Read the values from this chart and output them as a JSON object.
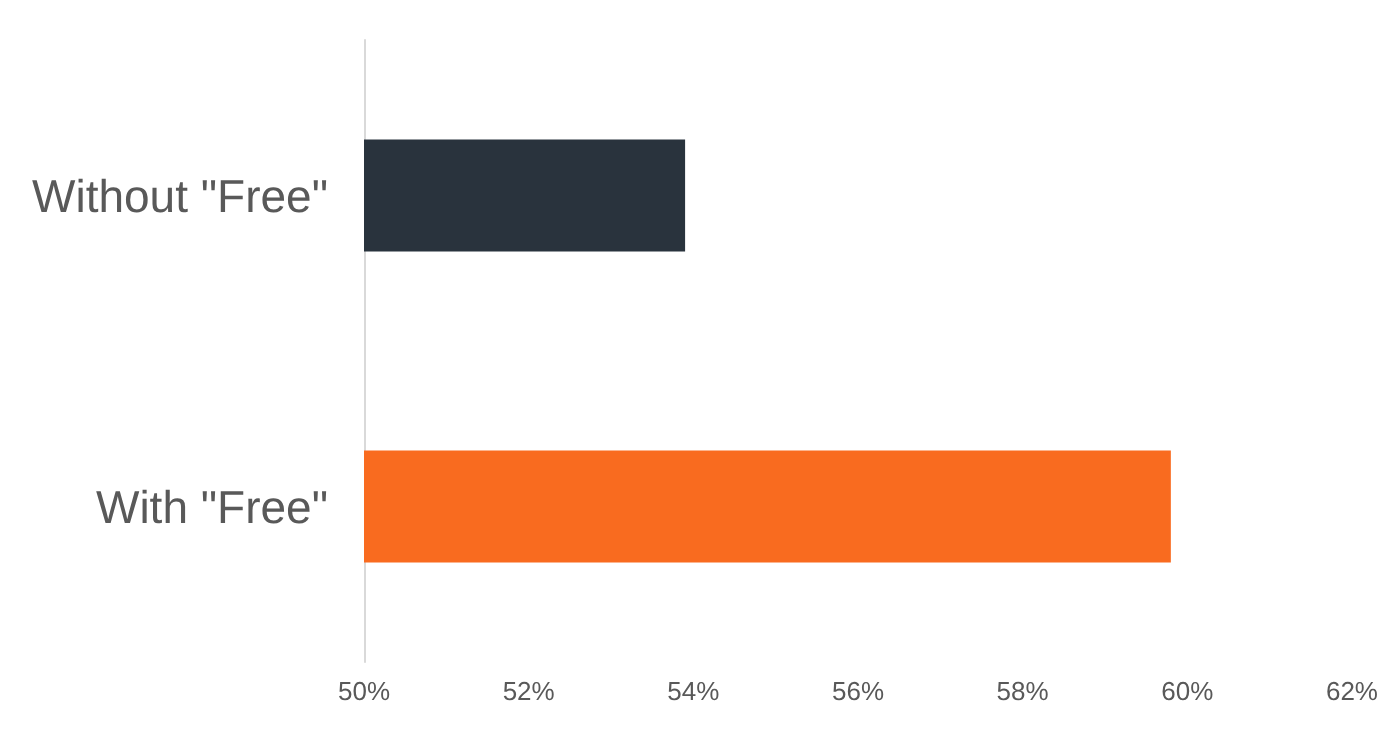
{
  "chart_data": {
    "type": "bar",
    "orientation": "horizontal",
    "categories": [
      "Without \"Free\"",
      "With \"Free\""
    ],
    "values": [
      53.9,
      59.8
    ],
    "colors": [
      "#29333d",
      "#f96b1f"
    ],
    "xlim": [
      50,
      62
    ],
    "xticks": [
      {
        "value": 50,
        "label": "50%"
      },
      {
        "value": 52,
        "label": "52%"
      },
      {
        "value": 54,
        "label": "54%"
      },
      {
        "value": 56,
        "label": "56%"
      },
      {
        "value": 58,
        "label": "58%"
      },
      {
        "value": 60,
        "label": "60%"
      },
      {
        "value": 62,
        "label": "62%"
      }
    ],
    "grid": false
  }
}
